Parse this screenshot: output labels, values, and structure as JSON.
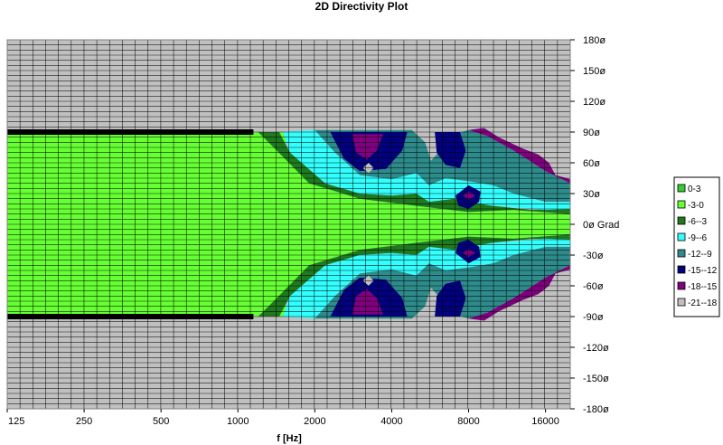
{
  "chart_data": {
    "type": "heatmap",
    "title": "2D Directivity Plot",
    "xlabel": "f [Hz]",
    "x_scale": "log2",
    "xlim": [
      125,
      20000
    ],
    "x_ticks": [
      {
        "value": 125,
        "label": "125"
      },
      {
        "value": 250,
        "label": "250"
      },
      {
        "value": 500,
        "label": "500"
      },
      {
        "value": 1000,
        "label": "1000"
      },
      {
        "value": 2000,
        "label": "2000"
      },
      {
        "value": 4000,
        "label": "4000"
      },
      {
        "value": 8000,
        "label": "8000"
      },
      {
        "value": 16000,
        "label": "16000"
      }
    ],
    "ylim": [
      -180,
      180
    ],
    "y_ticks": [
      {
        "value": 180,
        "label": "180ø"
      },
      {
        "value": 150,
        "label": "150ø"
      },
      {
        "value": 120,
        "label": "120ø"
      },
      {
        "value": 90,
        "label": "90ø"
      },
      {
        "value": 60,
        "label": "60ø"
      },
      {
        "value": 30,
        "label": "30ø"
      },
      {
        "value": 0,
        "label": "0ø Grad"
      },
      {
        "value": -30,
        "label": "-30ø"
      },
      {
        "value": -60,
        "label": "-60ø"
      },
      {
        "value": -90,
        "label": "-90ø"
      },
      {
        "value": -120,
        "label": "-120ø"
      },
      {
        "value": -150,
        "label": "-150ø"
      },
      {
        "value": -180,
        "label": "-180ø"
      }
    ],
    "grid": true,
    "legend_position": "right",
    "legend": [
      {
        "label": "0-3",
        "color": "#33cc33"
      },
      {
        "label": "-3-0",
        "color": "#66ff33"
      },
      {
        "label": "-6--3",
        "color": "#1f7a1f"
      },
      {
        "label": "-9--6",
        "color": "#33ffff"
      },
      {
        "label": "-12--9",
        "color": "#2e8b8b"
      },
      {
        "label": "-15--12",
        "color": "#000080"
      },
      {
        "label": "-18--15",
        "color": "#800080"
      },
      {
        "label": "-21--18",
        "color": "#c0c0c0"
      }
    ],
    "regions": [
      {
        "level": "-3-0",
        "points": [
          [
            125,
            90
          ],
          [
            1900,
            90
          ],
          [
            1400,
            75
          ],
          [
            1900,
            40
          ],
          [
            3000,
            25
          ],
          [
            5000,
            18
          ],
          [
            8000,
            12
          ],
          [
            12000,
            14
          ],
          [
            20000,
            10
          ],
          [
            20000,
            -10
          ],
          [
            12000,
            -14
          ],
          [
            8000,
            -12
          ],
          [
            5000,
            -18
          ],
          [
            3000,
            -25
          ],
          [
            1900,
            -40
          ],
          [
            1400,
            -75
          ],
          [
            1900,
            -90
          ],
          [
            125,
            -90
          ]
        ]
      },
      {
        "level": "-6--3",
        "points": [
          [
            1200,
            90
          ],
          [
            1450,
            90
          ],
          [
            1600,
            70
          ],
          [
            2200,
            40
          ],
          [
            3000,
            30
          ],
          [
            4000,
            28
          ],
          [
            5000,
            30
          ],
          [
            5600,
            22
          ],
          [
            7000,
            25
          ],
          [
            8000,
            22
          ],
          [
            10000,
            18
          ],
          [
            14000,
            14
          ],
          [
            20000,
            15
          ],
          [
            20000,
            -15
          ],
          [
            14000,
            -14
          ],
          [
            10000,
            -18
          ],
          [
            8000,
            -22
          ],
          [
            7000,
            -25
          ],
          [
            5600,
            -22
          ],
          [
            5000,
            -30
          ],
          [
            4000,
            -28
          ],
          [
            3000,
            -30
          ],
          [
            2200,
            -40
          ],
          [
            1600,
            -70
          ],
          [
            1450,
            -90
          ],
          [
            1200,
            -90
          ],
          [
            1380,
            -75
          ],
          [
            1900,
            -40
          ],
          [
            3000,
            -25
          ],
          [
            5000,
            -18
          ],
          [
            8000,
            -12
          ],
          [
            12000,
            -14
          ],
          [
            20000,
            -10
          ],
          [
            20000,
            10
          ],
          [
            12000,
            14
          ],
          [
            8000,
            12
          ],
          [
            5000,
            18
          ],
          [
            3000,
            25
          ],
          [
            1900,
            40
          ],
          [
            1380,
            75
          ]
        ]
      },
      {
        "level": "-9--6",
        "points": [
          [
            1500,
            90
          ],
          [
            2000,
            92
          ],
          [
            2400,
            70
          ],
          [
            3000,
            48
          ],
          [
            4000,
            44
          ],
          [
            5000,
            50
          ],
          [
            5600,
            38
          ],
          [
            6500,
            45
          ],
          [
            8000,
            42
          ],
          [
            10000,
            38
          ],
          [
            12000,
            30
          ],
          [
            16000,
            22
          ],
          [
            20000,
            22
          ],
          [
            20000,
            15
          ],
          [
            16000,
            14
          ],
          [
            10000,
            18
          ],
          [
            8000,
            22
          ],
          [
            7000,
            25
          ],
          [
            5600,
            22
          ],
          [
            5000,
            30
          ],
          [
            4000,
            28
          ],
          [
            3000,
            30
          ],
          [
            2200,
            40
          ],
          [
            1600,
            70
          ]
        ]
      },
      {
        "level": "-9--6",
        "points": [
          [
            1500,
            -90
          ],
          [
            2000,
            -92
          ],
          [
            2400,
            -70
          ],
          [
            3000,
            -48
          ],
          [
            4000,
            -44
          ],
          [
            5000,
            -50
          ],
          [
            5600,
            -38
          ],
          [
            6500,
            -45
          ],
          [
            8000,
            -42
          ],
          [
            10000,
            -38
          ],
          [
            12000,
            -30
          ],
          [
            16000,
            -22
          ],
          [
            20000,
            -22
          ],
          [
            20000,
            -15
          ],
          [
            16000,
            -14
          ],
          [
            10000,
            -18
          ],
          [
            8000,
            -22
          ],
          [
            7000,
            -25
          ],
          [
            5600,
            -22
          ],
          [
            5000,
            -30
          ],
          [
            4000,
            -28
          ],
          [
            3000,
            -30
          ],
          [
            2200,
            -40
          ],
          [
            1600,
            -70
          ]
        ]
      },
      {
        "level": "-12--9",
        "points": [
          [
            2000,
            92
          ],
          [
            4800,
            92
          ],
          [
            5400,
            80
          ],
          [
            5700,
            62
          ],
          [
            6200,
            72
          ],
          [
            7000,
            88
          ],
          [
            8000,
            92
          ],
          [
            9500,
            86
          ],
          [
            12000,
            72
          ],
          [
            16000,
            52
          ],
          [
            20000,
            40
          ],
          [
            20000,
            22
          ],
          [
            16000,
            22
          ],
          [
            12000,
            30
          ],
          [
            10000,
            38
          ],
          [
            8000,
            42
          ],
          [
            6500,
            45
          ],
          [
            5600,
            38
          ],
          [
            5000,
            50
          ],
          [
            4000,
            44
          ],
          [
            3000,
            48
          ],
          [
            2400,
            70
          ]
        ]
      },
      {
        "level": "-12--9",
        "points": [
          [
            2000,
            -92
          ],
          [
            4800,
            -92
          ],
          [
            5400,
            -80
          ],
          [
            5700,
            -62
          ],
          [
            6200,
            -72
          ],
          [
            7000,
            -88
          ],
          [
            8000,
            -92
          ],
          [
            9500,
            -86
          ],
          [
            12000,
            -72
          ],
          [
            16000,
            -52
          ],
          [
            20000,
            -40
          ],
          [
            20000,
            -22
          ],
          [
            16000,
            -22
          ],
          [
            12000,
            -30
          ],
          [
            10000,
            -38
          ],
          [
            8000,
            -42
          ],
          [
            6500,
            -45
          ],
          [
            5600,
            -38
          ],
          [
            5000,
            -50
          ],
          [
            4000,
            -44
          ],
          [
            3000,
            -48
          ],
          [
            2400,
            -70
          ]
        ]
      },
      {
        "level": "-15--12",
        "points": [
          [
            2300,
            90
          ],
          [
            4600,
            90
          ],
          [
            4400,
            72
          ],
          [
            3800,
            54
          ],
          [
            3000,
            52
          ],
          [
            2600,
            64
          ]
        ]
      },
      {
        "level": "-15--12",
        "points": [
          [
            2300,
            -90
          ],
          [
            4600,
            -90
          ],
          [
            4400,
            -72
          ],
          [
            3800,
            -54
          ],
          [
            3000,
            -52
          ],
          [
            2600,
            -64
          ]
        ]
      },
      {
        "level": "-15--12",
        "points": [
          [
            5900,
            90
          ],
          [
            7400,
            90
          ],
          [
            7800,
            72
          ],
          [
            7400,
            55
          ],
          [
            6500,
            58
          ],
          [
            6000,
            70
          ]
        ]
      },
      {
        "level": "-15--12",
        "points": [
          [
            5900,
            -90
          ],
          [
            7400,
            -90
          ],
          [
            7800,
            -72
          ],
          [
            7400,
            -55
          ],
          [
            6500,
            -58
          ],
          [
            6000,
            -70
          ]
        ]
      },
      {
        "level": "-15--12",
        "points": [
          [
            7100,
            28
          ],
          [
            8000,
            38
          ],
          [
            8900,
            32
          ],
          [
            8800,
            22
          ],
          [
            8000,
            15
          ],
          [
            7300,
            18
          ]
        ]
      },
      {
        "level": "-15--12",
        "points": [
          [
            7100,
            -28
          ],
          [
            8000,
            -38
          ],
          [
            8900,
            -32
          ],
          [
            8800,
            -22
          ],
          [
            8000,
            -15
          ],
          [
            7300,
            -18
          ]
        ]
      },
      {
        "level": "-18--15",
        "points": [
          [
            2800,
            88
          ],
          [
            3700,
            88
          ],
          [
            3500,
            72
          ],
          [
            3200,
            63
          ],
          [
            2900,
            70
          ]
        ]
      },
      {
        "level": "-18--15",
        "points": [
          [
            2800,
            -88
          ],
          [
            3700,
            -88
          ],
          [
            3500,
            -72
          ],
          [
            3200,
            -63
          ],
          [
            2900,
            -70
          ]
        ]
      },
      {
        "level": "-18--15",
        "points": [
          [
            8000,
            92
          ],
          [
            9200,
            94
          ],
          [
            10500,
            85
          ],
          [
            13000,
            74
          ],
          [
            15000,
            68
          ],
          [
            16500,
            60
          ],
          [
            17500,
            48
          ],
          [
            20000,
            44
          ],
          [
            20000,
            40
          ],
          [
            16000,
            52
          ],
          [
            12000,
            72
          ],
          [
            9500,
            86
          ]
        ]
      },
      {
        "level": "-18--15",
        "points": [
          [
            8000,
            -92
          ],
          [
            9200,
            -94
          ],
          [
            10500,
            -85
          ],
          [
            13000,
            -74
          ],
          [
            15000,
            -68
          ],
          [
            16500,
            -60
          ],
          [
            17500,
            -48
          ],
          [
            20000,
            -44
          ],
          [
            20000,
            -40
          ],
          [
            16000,
            -52
          ],
          [
            12000,
            -72
          ],
          [
            9500,
            -86
          ]
        ]
      },
      {
        "level": "-18--15",
        "points": [
          [
            7600,
            28
          ],
          [
            8000,
            32
          ],
          [
            8500,
            28
          ],
          [
            8000,
            24
          ]
        ]
      },
      {
        "level": "-18--15",
        "points": [
          [
            7600,
            -28
          ],
          [
            8000,
            -32
          ],
          [
            8500,
            -28
          ],
          [
            8000,
            -24
          ]
        ]
      },
      {
        "level": "-21--18",
        "points": [
          [
            3080,
            55
          ],
          [
            3250,
            60
          ],
          [
            3400,
            55
          ],
          [
            3250,
            50
          ]
        ]
      },
      {
        "level": "-21--18",
        "points": [
          [
            3080,
            -55
          ],
          [
            3250,
            -60
          ],
          [
            3400,
            -55
          ],
          [
            3250,
            -50
          ]
        ]
      }
    ]
  }
}
